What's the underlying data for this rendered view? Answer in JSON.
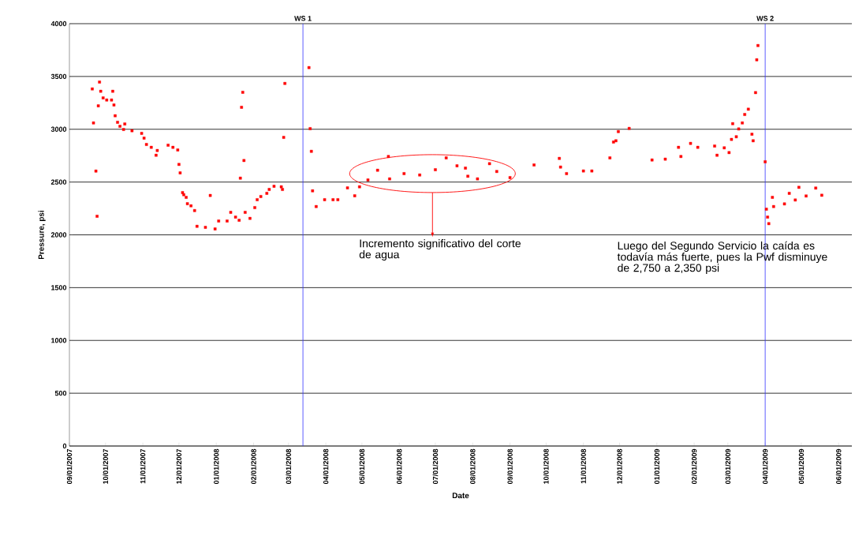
{
  "chart_data": {
    "type": "scatter",
    "xlabel": "Date",
    "ylabel": "Pressure, psi",
    "x": [
      "2007-09-20",
      "2007-09-21",
      "2007-09-23",
      "2007-09-24",
      "2007-09-25",
      "2007-09-26",
      "2007-09-27",
      "2007-09-29",
      "2007-10-02",
      "2007-10-06",
      "2007-10-07",
      "2007-10-08",
      "2007-10-09",
      "2007-10-11",
      "2007-10-13",
      "2007-10-16",
      "2007-10-17",
      "2007-10-23",
      "2007-10-31",
      "2007-11-02",
      "2007-11-04",
      "2007-11-08",
      "2007-11-12",
      "2007-11-13",
      "2007-11-22",
      "2007-11-26",
      "2007-11-30",
      "2007-12-01",
      "2007-12-02",
      "2007-12-04",
      "2007-12-05",
      "2007-12-07",
      "2007-12-08",
      "2007-12-11",
      "2007-12-14",
      "2007-12-16",
      "2007-12-23",
      "2007-12-27",
      "2007-12-31",
      "2008-01-03",
      "2008-01-10",
      "2008-01-13",
      "2008-01-17",
      "2008-01-20",
      "2008-01-21",
      "2008-01-22",
      "2008-01-23",
      "2008-01-24",
      "2008-01-25",
      "2008-01-29",
      "2008-02-02",
      "2008-02-04",
      "2008-02-07",
      "2008-02-12",
      "2008-02-14",
      "2008-02-18",
      "2008-02-24",
      "2008-02-25",
      "2008-02-26",
      "2008-02-27",
      "2008-03-18",
      "2008-03-19",
      "2008-03-20",
      "2008-03-21",
      "2008-03-24",
      "2008-03-31",
      "2008-04-07",
      "2008-04-11",
      "2008-04-19",
      "2008-04-25",
      "2008-04-29",
      "2008-05-06",
      "2008-05-14",
      "2008-05-23",
      "2008-05-24",
      "2008-06-05",
      "2008-06-18",
      "2008-07-01",
      "2008-07-10",
      "2008-07-19",
      "2008-07-26",
      "2008-07-28",
      "2008-08-05",
      "2008-08-15",
      "2008-08-21",
      "2008-09-01",
      "2008-09-21",
      "2008-10-12",
      "2008-10-13",
      "2008-10-18",
      "2008-11-01",
      "2008-11-08",
      "2008-11-23",
      "2008-11-26",
      "2008-11-28",
      "2008-11-30",
      "2008-12-09",
      "2008-12-28",
      "2009-01-08",
      "2009-01-19",
      "2009-01-21",
      "2009-01-29",
      "2009-02-04",
      "2009-02-18",
      "2009-02-20",
      "2009-02-26",
      "2009-03-02",
      "2009-03-04",
      "2009-03-05",
      "2009-03-08",
      "2009-03-10",
      "2009-03-13",
      "2009-03-15",
      "2009-03-18",
      "2009-03-21",
      "2009-03-22",
      "2009-03-24",
      "2009-03-25",
      "2009-03-26",
      "2009-04-01",
      "2009-04-02",
      "2009-04-03",
      "2009-04-04",
      "2009-04-07",
      "2009-04-08",
      "2009-04-17",
      "2009-04-21",
      "2009-04-26",
      "2009-04-29",
      "2009-05-05",
      "2009-05-13",
      "2009-05-18"
    ],
    "values": [
      3382,
      3060,
      2604,
      2176,
      3222,
      3447,
      3360,
      3297,
      3277,
      3277,
      3360,
      3230,
      3128,
      3066,
      3028,
      2998,
      3050,
      2986,
      2961,
      2916,
      2856,
      2829,
      2754,
      2799,
      2849,
      2829,
      2804,
      2667,
      2587,
      2400,
      2380,
      2355,
      2295,
      2275,
      2230,
      2081,
      2071,
      2373,
      2056,
      2131,
      2131,
      2213,
      2168,
      2138,
      2537,
      3208,
      3350,
      2704,
      2213,
      2156,
      2258,
      2333,
      2363,
      2393,
      2430,
      2460,
      2455,
      2430,
      2923,
      3434,
      3584,
      3006,
      2791,
      2417,
      2268,
      2333,
      2333,
      2333,
      2445,
      2370,
      2455,
      2520,
      2612,
      2742,
      2530,
      2580,
      2567,
      2617,
      2729,
      2654,
      2632,
      2555,
      2530,
      2674,
      2600,
      2542,
      2662,
      2724,
      2642,
      2580,
      2605,
      2605,
      2729,
      2879,
      2891,
      2978,
      3008,
      2709,
      2717,
      2829,
      2742,
      2866,
      2829,
      2841,
      2754,
      2824,
      2779,
      2904,
      3053,
      2929,
      3003,
      3060,
      3140,
      3190,
      2953,
      2891,
      3347,
      3658,
      3793,
      2692,
      2243,
      2168,
      2106,
      2355,
      2268,
      2293,
      2393,
      2330,
      2450,
      2368,
      2443,
      2375
    ],
    "color": "#ff0000",
    "marker": "square",
    "grid": "y",
    "xlim": [
      "2007-09-01",
      "2009-06-12"
    ],
    "xticks": [
      {
        "value": "2007-09-01",
        "label": "09/01/2007"
      },
      {
        "value": "2007-10-01",
        "label": "10/01/2007"
      },
      {
        "value": "2007-11-01",
        "label": "11/01/2007"
      },
      {
        "value": "2007-12-01",
        "label": "12/01/2007"
      },
      {
        "value": "2008-01-01",
        "label": "01/01/2008"
      },
      {
        "value": "2008-02-01",
        "label": "02/01/2008"
      },
      {
        "value": "2008-03-01",
        "label": "03/01/2008"
      },
      {
        "value": "2008-04-01",
        "label": "04/01/2008"
      },
      {
        "value": "2008-05-01",
        "label": "05/01/2008"
      },
      {
        "value": "2008-06-01",
        "label": "06/01/2008"
      },
      {
        "value": "2008-07-01",
        "label": "07/01/2008"
      },
      {
        "value": "2008-08-01",
        "label": "08/01/2008"
      },
      {
        "value": "2008-09-01",
        "label": "09/01/2008"
      },
      {
        "value": "2008-10-01",
        "label": "10/01/2008"
      },
      {
        "value": "2008-11-01",
        "label": "11/01/2008"
      },
      {
        "value": "2008-12-01",
        "label": "12/01/2008"
      },
      {
        "value": "2009-01-01",
        "label": "01/01/2009"
      },
      {
        "value": "2009-02-01",
        "label": "02/01/2009"
      },
      {
        "value": "2009-03-01",
        "label": "03/01/2009"
      },
      {
        "value": "2009-04-01",
        "label": "04/01/2009"
      },
      {
        "value": "2009-05-01",
        "label": "05/01/2009"
      },
      {
        "value": "2009-06-01",
        "label": "06/01/2009"
      }
    ],
    "ylim": [
      0,
      4000
    ],
    "yticks": [
      0,
      500,
      1000,
      1500,
      2000,
      2500,
      3000,
      3500,
      4000
    ],
    "ref_lines": [
      {
        "axis": "x",
        "value": "2008-03-13",
        "label": "WS 1",
        "color": "#3333ff"
      },
      {
        "axis": "x",
        "value": "2009-04-01",
        "label": "WS 2",
        "color": "#3333ff"
      }
    ],
    "annotations": [
      "Incremento significativo del corte de agua",
      "Luego del Segundo Servicio la caída es todavía más fuerte, pues la Pwf disminuye de 2,750 a 2,350 psi"
    ]
  }
}
